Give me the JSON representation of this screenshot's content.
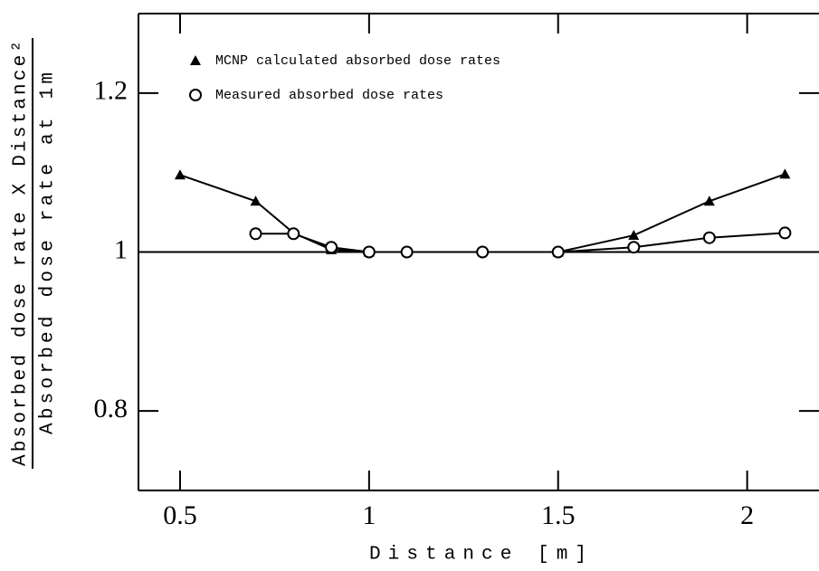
{
  "chart_data": {
    "type": "line",
    "x_label": "Distance [m]",
    "y_label_numerator": "Absorbed dose rate X Distance²",
    "y_label_denominator": "Absorbed dose rate at 1m",
    "xlim": [
      0.39,
      2.19
    ],
    "ylim": [
      0.7,
      1.3
    ],
    "xticks": [
      0.5,
      1,
      1.5,
      2
    ],
    "yticks": [
      0.8,
      1,
      1.2
    ],
    "reference_line": 1,
    "series": [
      {
        "name": "MCNP calculated absorbed dose rates",
        "marker": "triangle",
        "color": "#000000",
        "x": [
          0.5,
          0.7,
          0.8,
          0.9,
          1,
          1.5,
          1.7,
          1.9,
          2.1
        ],
        "values": [
          1.097,
          1.064,
          1.024,
          1.003,
          1.0,
          1.0,
          1.021,
          1.064,
          1.098
        ]
      },
      {
        "name": "Measured absorbed dose rates",
        "marker": "circle",
        "color": "#000000",
        "x": [
          0.7,
          0.8,
          0.9,
          1,
          1.1,
          1.3,
          1.5,
          1.7,
          1.9,
          2.1
        ],
        "values": [
          1.023,
          1.023,
          1.006,
          1.0,
          1.0,
          1.0,
          1.0,
          1.006,
          1.018,
          1.024
        ]
      }
    ]
  }
}
